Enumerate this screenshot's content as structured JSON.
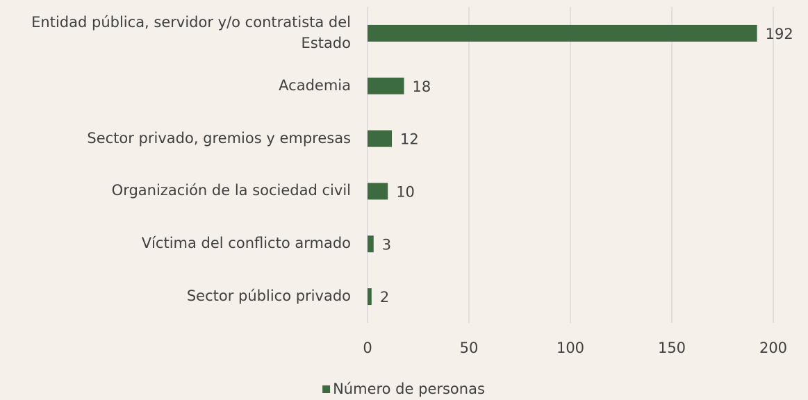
{
  "chart_data": {
    "type": "barh",
    "categories": [
      "Entidad pública, servidor y/o contratista del Estado",
      "Academia",
      "Sector privado, gremios y empresas",
      "Organización de la sociedad civil",
      "Víctima del conflicto armado",
      "Sector público privado"
    ],
    "series": [
      {
        "name": "Número de personas",
        "color": "#3b6b3e",
        "values": [
          192,
          18,
          12,
          10,
          3,
          2
        ]
      }
    ],
    "xlim": [
      0,
      200
    ],
    "xticks": [
      0,
      50,
      100,
      150,
      200
    ],
    "grid": true,
    "legend": "bottom"
  }
}
